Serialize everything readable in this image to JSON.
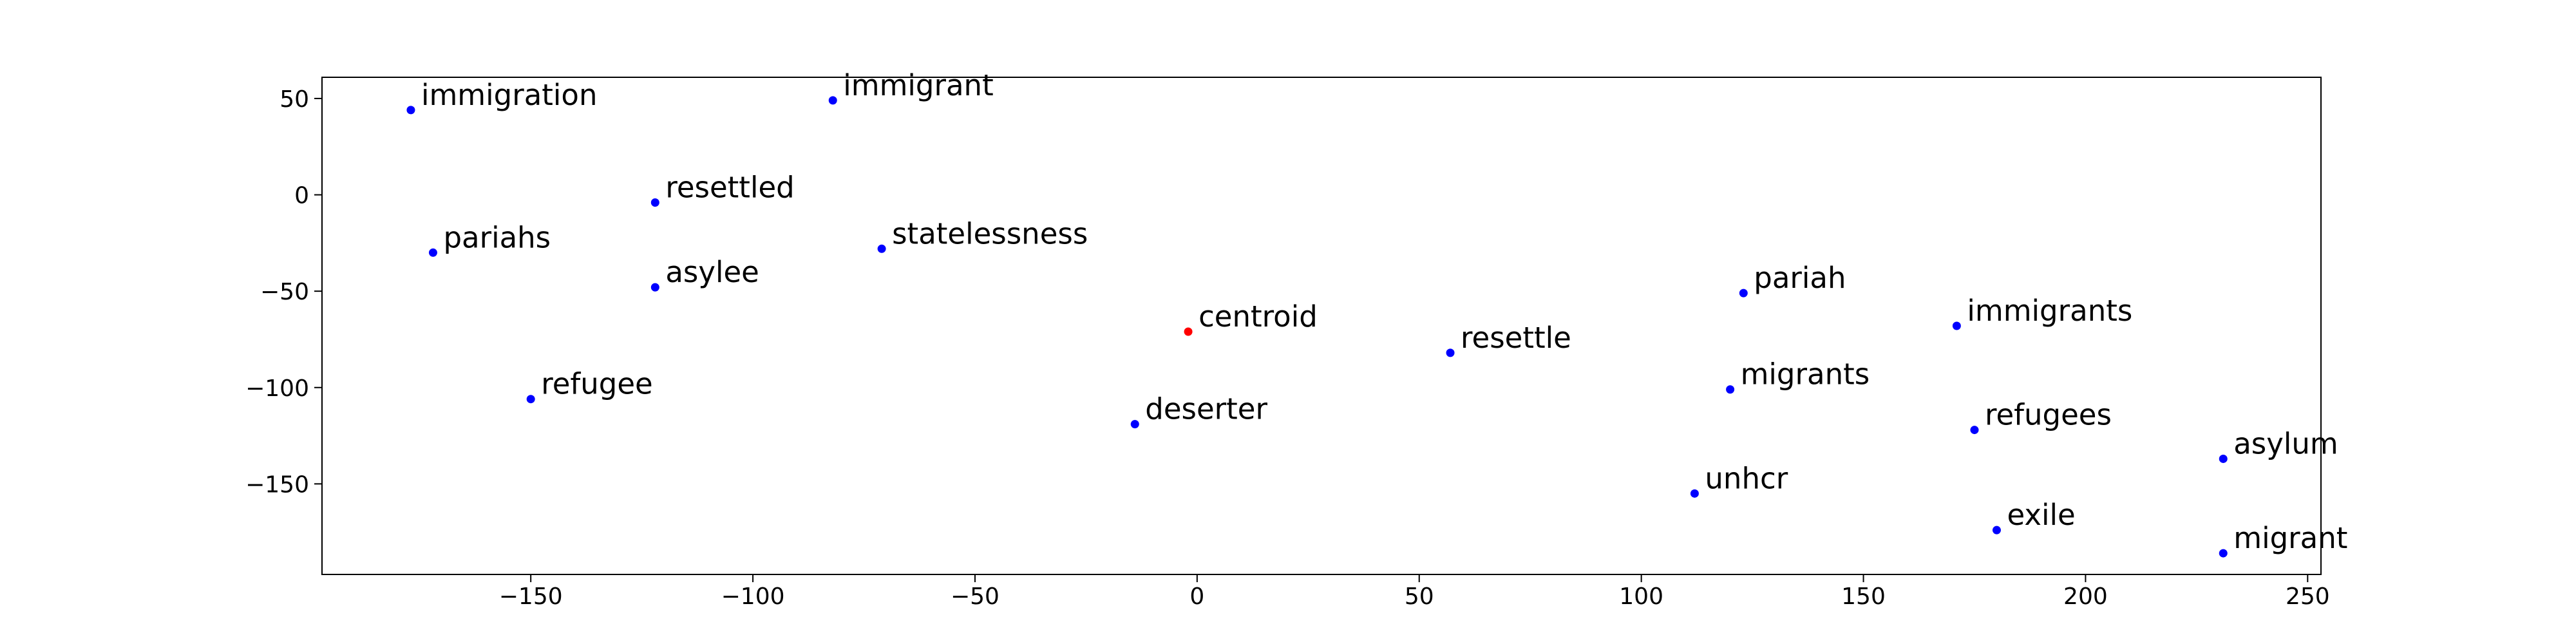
{
  "chart_data": {
    "type": "scatter",
    "title": "",
    "xlabel": "",
    "ylabel": "",
    "xlim": [
      -197,
      253
    ],
    "ylim": [
      -197,
      61
    ],
    "grid": false,
    "legend": "none",
    "x_ticks": [
      -150,
      -100,
      -50,
      0,
      50,
      100,
      150,
      200,
      250
    ],
    "y_ticks": [
      -150,
      -100,
      -50,
      0,
      50
    ],
    "x_tick_labels": [
      "−150",
      "−100",
      "−50",
      "0",
      "50",
      "100",
      "150",
      "200",
      "250"
    ],
    "y_tick_labels": [
      "−150",
      "−100",
      "−50",
      "0",
      "50"
    ],
    "colors": {
      "word": "#0000ff",
      "centroid": "#ff0000",
      "text": "#000000",
      "axes": "#000000"
    },
    "points": [
      {
        "label": "immigration",
        "x": -177,
        "y": 44,
        "kind": "word"
      },
      {
        "label": "immigrant",
        "x": -82,
        "y": 49,
        "kind": "word"
      },
      {
        "label": "resettled",
        "x": -122,
        "y": -4,
        "kind": "word"
      },
      {
        "label": "pariahs",
        "x": -172,
        "y": -30,
        "kind": "word"
      },
      {
        "label": "statelessness",
        "x": -71,
        "y": -28,
        "kind": "word"
      },
      {
        "label": "asylee",
        "x": -122,
        "y": -48,
        "kind": "word"
      },
      {
        "label": "centroid",
        "x": -2,
        "y": -71,
        "kind": "centroid"
      },
      {
        "label": "refugee",
        "x": -150,
        "y": -106,
        "kind": "word"
      },
      {
        "label": "deserter",
        "x": -14,
        "y": -119,
        "kind": "word"
      },
      {
        "label": "resettle",
        "x": 57,
        "y": -82,
        "kind": "word"
      },
      {
        "label": "pariah",
        "x": 123,
        "y": -51,
        "kind": "word"
      },
      {
        "label": "immigrants",
        "x": 171,
        "y": -68,
        "kind": "word"
      },
      {
        "label": "migrants",
        "x": 120,
        "y": -101,
        "kind": "word"
      },
      {
        "label": "refugees",
        "x": 175,
        "y": -122,
        "kind": "word"
      },
      {
        "label": "unhcr",
        "x": 112,
        "y": -155,
        "kind": "word"
      },
      {
        "label": "exile",
        "x": 180,
        "y": -174,
        "kind": "word"
      },
      {
        "label": "asylum",
        "x": 231,
        "y": -137,
        "kind": "word"
      },
      {
        "label": "migrant",
        "x": 231,
        "y": -186,
        "kind": "word"
      }
    ]
  }
}
